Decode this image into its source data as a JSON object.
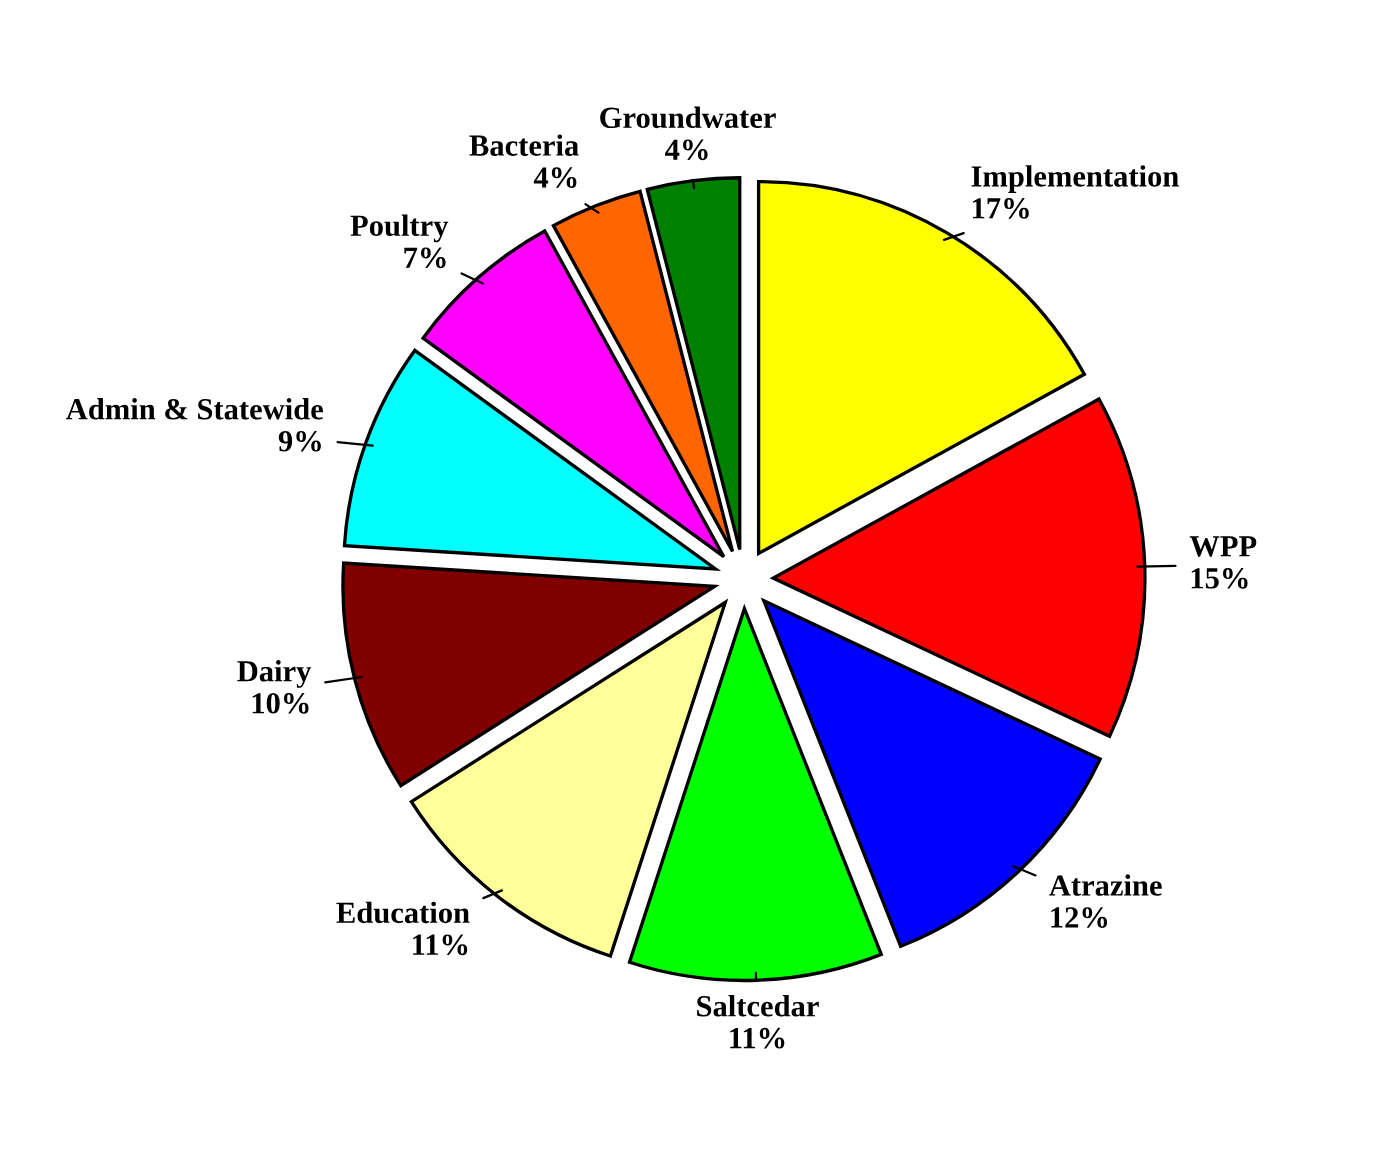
{
  "chart_data": {
    "type": "pie",
    "categories": [
      "Implementation",
      "WPP",
      "Atrazine",
      "Saltcedar",
      "Education",
      "Dairy",
      "Admin & Statewide",
      "Poultry",
      "Bacteria",
      "Groundwater"
    ],
    "values": [
      17,
      15,
      12,
      11,
      11,
      10,
      9,
      7,
      4,
      4
    ],
    "colors": [
      "#ffff00",
      "#ff0000",
      "#0000ff",
      "#00ff00",
      "#ffff99",
      "#800000",
      "#00ffff",
      "#ff00ff",
      "#ff6600",
      "#008000"
    ],
    "value_labels": [
      "17%",
      "15%",
      "12%",
      "11%",
      "11%",
      "10%",
      "9%",
      "7%",
      "4%",
      "4%"
    ]
  }
}
